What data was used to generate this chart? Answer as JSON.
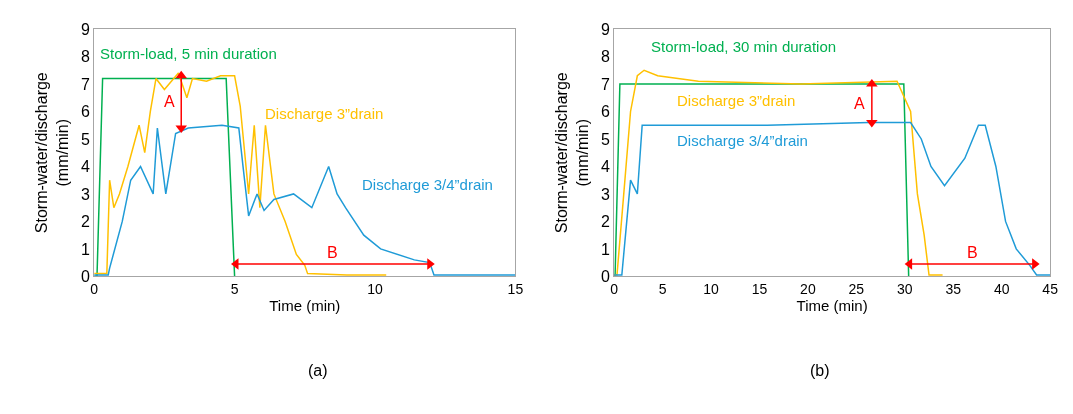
{
  "chart_data": [
    {
      "type": "line",
      "xlabel": "Time (min)",
      "ylabel": "Storm-water/discharge (mm/min)",
      "xlim": [
        0,
        15
      ],
      "xticks": [
        0,
        5,
        10,
        15
      ],
      "ylim": [
        0,
        9
      ],
      "yticks": [
        0,
        1,
        2,
        3,
        4,
        5,
        6,
        7,
        8,
        9
      ],
      "series": [
        {
          "name": "Storm-load, 5 min duration",
          "color": "#00b050",
          "x": [
            0,
            0.1,
            0.3,
            4.7,
            5.0
          ],
          "values": [
            0,
            0,
            7.2,
            7.2,
            0
          ]
        },
        {
          "name": "Discharge 3”drain",
          "color": "#ffc000",
          "x": [
            0,
            0.45,
            0.55,
            0.7,
            0.9,
            1.2,
            1.6,
            1.8,
            2.0,
            2.2,
            2.5,
            3.0,
            3.3,
            3.5,
            4.0,
            4.5,
            5.0,
            5.2,
            5.5,
            5.7,
            5.9,
            6.1,
            6.4,
            6.8,
            7.2,
            7.5,
            7.6,
            9.0,
            10.4
          ],
          "values": [
            0.1,
            0.1,
            3.5,
            2.5,
            3.0,
            4.0,
            5.5,
            4.5,
            6.0,
            7.2,
            6.8,
            7.4,
            6.5,
            7.2,
            7.1,
            7.3,
            7.3,
            6.2,
            3.0,
            5.5,
            2.5,
            5.5,
            3.0,
            2.0,
            0.8,
            0.4,
            0.1,
            0.05,
            0.05
          ]
        },
        {
          "name": "Discharge 3/4”drain",
          "color": "#1f9bd7",
          "x": [
            0,
            0.5,
            0.55,
            1.0,
            1.3,
            1.65,
            2.1,
            2.25,
            2.55,
            2.9,
            3.35,
            4.55,
            5.15,
            5.3,
            5.5,
            5.8,
            6.05,
            6.4,
            7.1,
            7.75,
            8.35,
            8.65,
            8.95,
            9.6,
            10.2,
            11.4,
            11.95,
            12.1,
            15
          ],
          "values": [
            0.05,
            0.05,
            0.3,
            2.0,
            3.5,
            4.0,
            3.0,
            5.4,
            3.0,
            5.2,
            5.4,
            5.5,
            5.4,
            4.0,
            2.2,
            3.0,
            2.4,
            2.8,
            3.0,
            2.5,
            4.0,
            3.0,
            2.5,
            1.5,
            1.0,
            0.6,
            0.5,
            0.05,
            0.05
          ]
        },
        {
          "color": "#ff0000",
          "marker": "triangle",
          "x": [
            3.1,
            3.1
          ],
          "values": [
            7.3,
            5.4
          ]
        },
        {
          "color": "#ff0000",
          "marker": "triangle",
          "x": [
            5.05,
            11.95
          ],
          "values": [
            0.45,
            0.45
          ]
        }
      ],
      "annotations": [
        "A",
        "B",
        "(a)"
      ]
    },
    {
      "type": "line",
      "xlabel": "Time (min)",
      "ylabel": "Storm-water/discharge (mm/min)",
      "xlim": [
        0,
        45
      ],
      "xticks": [
        0,
        5,
        10,
        15,
        20,
        25,
        30,
        35,
        40,
        45
      ],
      "ylim": [
        0,
        9
      ],
      "yticks": [
        0,
        1,
        2,
        3,
        4,
        5,
        6,
        7,
        8,
        9
      ],
      "series": [
        {
          "name": "Storm-load, 30 min duration",
          "color": "#00b050",
          "x": [
            0,
            0.1,
            0.6,
            29.9,
            30.4
          ],
          "values": [
            0,
            0,
            7.0,
            7.0,
            0
          ]
        },
        {
          "name": "Discharge 3”drain",
          "color": "#ffc000",
          "x": [
            0,
            0.3,
            1.0,
            1.7,
            2.4,
            3.1,
            4.5,
            8.7,
            19.3,
            29.2,
            30.6,
            31.3,
            32.0,
            32.5,
            33.9
          ],
          "values": [
            0.05,
            0.05,
            3.0,
            6.0,
            7.3,
            7.5,
            7.3,
            7.1,
            7.0,
            7.1,
            6.0,
            3.0,
            1.5,
            0.05,
            0.05
          ]
        },
        {
          "name": "Discharge 3/4”drain",
          "color": "#1f9bd7",
          "x": [
            0,
            0.8,
            1.7,
            2.4,
            2.9,
            15.8,
            26.3,
            30.6,
            31.7,
            32.7,
            34.1,
            36.2,
            37.6,
            38.3,
            39.4,
            40.4,
            41.5,
            42.9,
            43.6,
            45
          ],
          "values": [
            0.05,
            0.05,
            3.5,
            3.0,
            5.5,
            5.5,
            5.6,
            5.6,
            5.0,
            4.0,
            3.3,
            4.3,
            5.5,
            5.5,
            4.0,
            2.0,
            1.0,
            0.4,
            0.05,
            0.05
          ]
        },
        {
          "color": "#ff0000",
          "marker": "triangle",
          "x": [
            26.6,
            26.6
          ],
          "values": [
            7.0,
            5.6
          ]
        },
        {
          "color": "#ff0000",
          "marker": "triangle",
          "x": [
            30.5,
            43.4
          ],
          "values": [
            0.45,
            0.45
          ]
        }
      ],
      "annotations": [
        "A",
        "B",
        "(b)"
      ]
    }
  ]
}
